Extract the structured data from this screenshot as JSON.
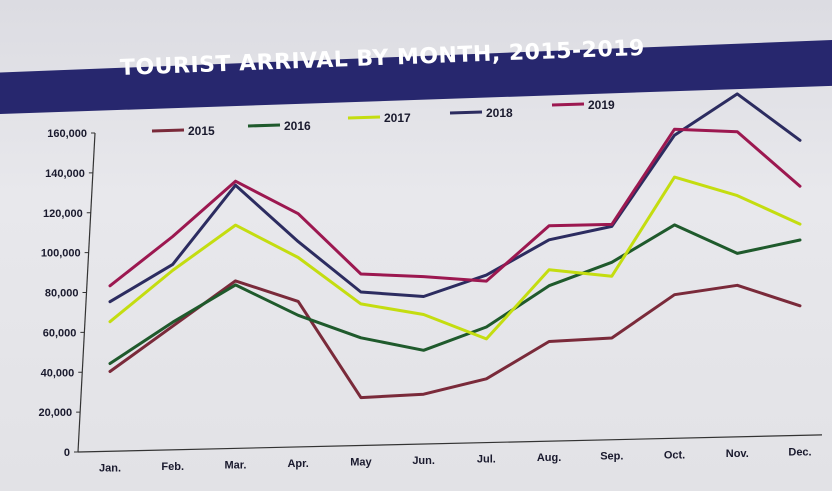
{
  "chart_data": {
    "type": "line",
    "title": "TOURIST ARRIVAL BY MONTH, 2015-2019",
    "categories": [
      "Jan.",
      "Feb.",
      "Mar.",
      "Apr.",
      "May",
      "Jun.",
      "Jul.",
      "Aug.",
      "Sep.",
      "Oct.",
      "Nov.",
      "Dec."
    ],
    "ylim": [
      0,
      160000
    ],
    "yticks": [
      0,
      20000,
      40000,
      60000,
      80000,
      100000,
      120000,
      140000,
      160000
    ],
    "ytick_labels": [
      "0",
      "20,000",
      "40,000",
      "60,000",
      "80,000",
      "100,000",
      "120,000",
      "140,000",
      "160,000"
    ],
    "grid": false,
    "legend_position": "top",
    "series": [
      {
        "name": "2015",
        "color": "#7a2a3a",
        "values": [
          40000,
          62000,
          84000,
          73000,
          24000,
          25000,
          32000,
          50000,
          51000,
          72000,
          76000,
          65000
        ]
      },
      {
        "name": "2016",
        "color": "#1f5a2c",
        "values": [
          44000,
          64000,
          82000,
          66000,
          54000,
          47000,
          58000,
          78000,
          89000,
          107000,
          92000,
          98000
        ]
      },
      {
        "name": "2017",
        "color": "#c4dd10",
        "values": [
          65000,
          90000,
          112000,
          95000,
          71000,
          65000,
          52000,
          86000,
          82000,
          131000,
          121000,
          106000
        ]
      },
      {
        "name": "2018",
        "color": "#2c2c60",
        "values": [
          75000,
          93000,
          132000,
          103000,
          77000,
          74000,
          84000,
          101000,
          107000,
          152000,
          172000,
          148000
        ]
      },
      {
        "name": "2019",
        "color": "#9c1850",
        "values": [
          83000,
          107000,
          134000,
          117000,
          86000,
          84000,
          81000,
          108000,
          108000,
          155000,
          153000,
          125000
        ]
      }
    ]
  }
}
